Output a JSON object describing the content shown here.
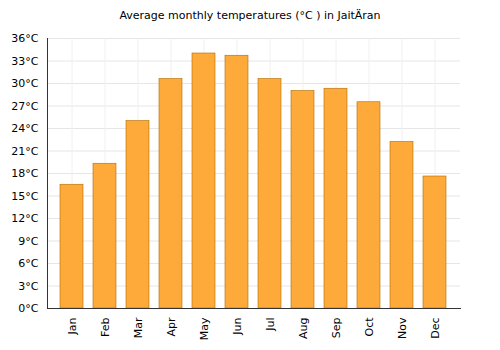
{
  "chart_data": {
    "type": "bar",
    "title": "Average monthly temperatures (°C ) in JaitÄran",
    "categories": [
      "Jan",
      "Feb",
      "Mar",
      "Apr",
      "May",
      "Jun",
      "Jul",
      "Aug",
      "Sep",
      "Oct",
      "Nov",
      "Dec"
    ],
    "values": [
      16.5,
      19.3,
      25,
      30.6,
      34,
      33.7,
      30.6,
      29,
      29.3,
      27.5,
      22.2,
      17.6
    ],
    "color": "#fdaa3a",
    "ylim": [
      0,
      36
    ],
    "yticks": [
      {
        "value": 0,
        "label": "0°C"
      },
      {
        "value": 3,
        "label": "3°C"
      },
      {
        "value": 6,
        "label": "6°C"
      },
      {
        "value": 9,
        "label": "9°C"
      },
      {
        "value": 12,
        "label": "12°C"
      },
      {
        "value": 15,
        "label": "15°C"
      },
      {
        "value": 18,
        "label": "18°C"
      },
      {
        "value": 21,
        "label": "21°C"
      },
      {
        "value": 24,
        "label": "24°C"
      },
      {
        "value": 27,
        "label": "27°C"
      },
      {
        "value": 30,
        "label": "30°C"
      },
      {
        "value": 33,
        "label": "33°C"
      },
      {
        "value": 36,
        "label": "36°C"
      }
    ],
    "grid": true
  }
}
